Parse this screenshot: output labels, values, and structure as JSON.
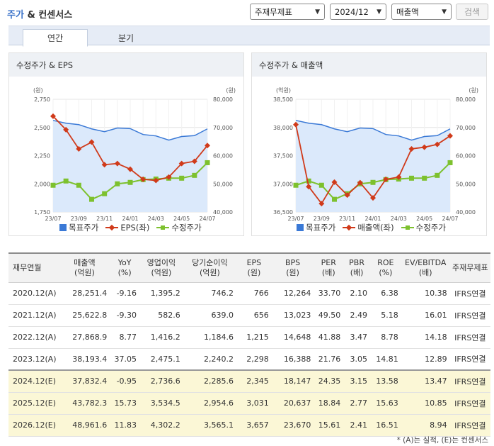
{
  "header": {
    "title_main": "주가",
    "title_rest": "& 컨센서스",
    "select_standard": "주재무제표",
    "select_period": "2024/12",
    "select_metric": "매출액",
    "search_label": "검색"
  },
  "tabs": [
    {
      "label": "연간",
      "active": true
    },
    {
      "label": "분기",
      "active": false
    }
  ],
  "panels": [
    {
      "title": "수정주가 & EPS",
      "left_unit": "(원)",
      "right_unit": "(원)",
      "left_ticks": [
        "2,750",
        "2,500",
        "2,250",
        "2,000",
        "1,750"
      ],
      "right_ticks": [
        "80,000",
        "70,000",
        "60,000",
        "50,000",
        "40,000"
      ],
      "legend": [
        "목표주가",
        "EPS(좌)",
        "수정주가"
      ]
    },
    {
      "title": "수정주가 & 매출액",
      "left_unit": "(억원)",
      "right_unit": "(원)",
      "left_ticks": [
        "38,500",
        "38,000",
        "37,500",
        "37,000",
        "36,500"
      ],
      "right_ticks": [
        "80,000",
        "70,000",
        "60,000",
        "50,000",
        "40,000"
      ],
      "legend": [
        "목표주가",
        "매출액(좌)",
        "수정주가"
      ]
    }
  ],
  "chart_data": [
    {
      "type": "line",
      "title": "수정주가 & EPS",
      "categories": [
        "23/07",
        "23/08",
        "23/09",
        "23/10",
        "23/11",
        "23/12",
        "24/01",
        "24/02",
        "24/03",
        "24/04",
        "24/05",
        "24/06",
        "24/07"
      ],
      "x_tick_labels": [
        "23/07",
        "23/09",
        "23/11",
        "24/01",
        "24/03",
        "24/05",
        "24/07"
      ],
      "y_left_range": [
        1750,
        2750
      ],
      "y_right_range": [
        40000,
        80000
      ],
      "series": [
        {
          "name": "목표주가",
          "axis": "right",
          "style": "area",
          "values": [
            72500,
            71500,
            71000,
            69500,
            68500,
            69800,
            69600,
            67500,
            67000,
            65500,
            66800,
            67100,
            69500
          ]
        },
        {
          "name": "EPS(좌)",
          "axis": "left",
          "style": "line-diamond",
          "values": [
            2600,
            2480,
            2310,
            2370,
            2170,
            2180,
            2130,
            2040,
            2030,
            2060,
            2180,
            2200,
            2340
          ]
        },
        {
          "name": "수정주가",
          "axis": "right",
          "style": "line-square",
          "values": [
            49500,
            51000,
            49500,
            44500,
            46500,
            50000,
            50500,
            51500,
            51700,
            52000,
            52000,
            53000,
            57500
          ]
        }
      ]
    },
    {
      "type": "line",
      "title": "수정주가 & 매출액",
      "categories": [
        "23/07",
        "23/08",
        "23/09",
        "23/10",
        "23/11",
        "23/12",
        "24/01",
        "24/02",
        "24/03",
        "24/04",
        "24/05",
        "24/06",
        "24/07"
      ],
      "x_tick_labels": [
        "23/07",
        "23/09",
        "23/11",
        "24/01",
        "24/03",
        "24/05",
        "24/07"
      ],
      "y_left_range": [
        36500,
        38500
      ],
      "y_right_range": [
        40000,
        80000
      ],
      "series": [
        {
          "name": "목표주가",
          "axis": "right",
          "style": "area",
          "values": [
            72500,
            71500,
            71000,
            69500,
            68500,
            69800,
            69600,
            67500,
            67000,
            65500,
            66800,
            67100,
            69500
          ]
        },
        {
          "name": "매출액(좌)",
          "axis": "left",
          "style": "line-diamond",
          "values": [
            38050,
            36950,
            36650,
            37030,
            36800,
            37020,
            36750,
            37080,
            37120,
            37620,
            37650,
            37700,
            37850
          ]
        },
        {
          "name": "수정주가",
          "axis": "right",
          "style": "line-square",
          "values": [
            49500,
            51000,
            49500,
            44500,
            46500,
            50000,
            50500,
            51500,
            51700,
            52000,
            52000,
            53000,
            57500
          ]
        }
      ]
    }
  ],
  "table": {
    "headers": [
      [
        "재무연월",
        ""
      ],
      [
        "매출액",
        "(억원)"
      ],
      [
        "YoY",
        "(%)"
      ],
      [
        "영업이익",
        "(억원)"
      ],
      [
        "당기순이익",
        "(억원)"
      ],
      [
        "EPS",
        "(원)"
      ],
      [
        "BPS",
        "(원)"
      ],
      [
        "PER",
        "(배)"
      ],
      [
        "PBR",
        "(배)"
      ],
      [
        "ROE",
        "(%)"
      ],
      [
        "EV/EBITDA",
        "(배)"
      ],
      [
        "주재무제표",
        ""
      ]
    ],
    "rows": [
      {
        "estimate": false,
        "cells": [
          "2020.12(A)",
          "28,251.4",
          "-9.16",
          "1,395.2",
          "746.2",
          "766",
          "12,264",
          "33.70",
          "2.10",
          "6.38",
          "10.38",
          "IFRS연결"
        ]
      },
      {
        "estimate": false,
        "cells": [
          "2021.12(A)",
          "25,622.8",
          "-9.30",
          "582.6",
          "639.0",
          "656",
          "13,023",
          "49.50",
          "2.49",
          "5.18",
          "16.01",
          "IFRS연결"
        ]
      },
      {
        "estimate": false,
        "cells": [
          "2022.12(A)",
          "27,868.9",
          "8.77",
          "1,416.2",
          "1,184.6",
          "1,215",
          "14,648",
          "41.88",
          "3.47",
          "8.78",
          "14.18",
          "IFRS연결"
        ]
      },
      {
        "estimate": false,
        "cells": [
          "2023.12(A)",
          "38,193.4",
          "37.05",
          "2,475.1",
          "2,240.2",
          "2,298",
          "16,388",
          "21.76",
          "3.05",
          "14.81",
          "12.89",
          "IFRS연결"
        ]
      },
      {
        "estimate": true,
        "cells": [
          "2024.12(E)",
          "37,832.4",
          "-0.95",
          "2,736.6",
          "2,285.6",
          "2,345",
          "18,147",
          "24.35",
          "3.15",
          "13.58",
          "13.47",
          "IFRS연결"
        ]
      },
      {
        "estimate": true,
        "cells": [
          "2025.12(E)",
          "43,782.3",
          "15.73",
          "3,534.5",
          "2,954.6",
          "3,031",
          "20,637",
          "18.84",
          "2.77",
          "15.63",
          "10.85",
          "IFRS연결"
        ]
      },
      {
        "estimate": true,
        "cells": [
          "2026.12(E)",
          "48,961.6",
          "11.83",
          "4,302.2",
          "3,565.1",
          "3,657",
          "23,670",
          "15.61",
          "2.41",
          "16.51",
          "8.94",
          "IFRS연결"
        ]
      }
    ],
    "footnote": "* (A)는 실적, (E)는 컨센서스"
  },
  "colors": {
    "target_price": "#3a79d6",
    "eps_line": "#d03a1a",
    "adj_price": "#7dc12e",
    "area_fill": "#dbe9fb"
  }
}
